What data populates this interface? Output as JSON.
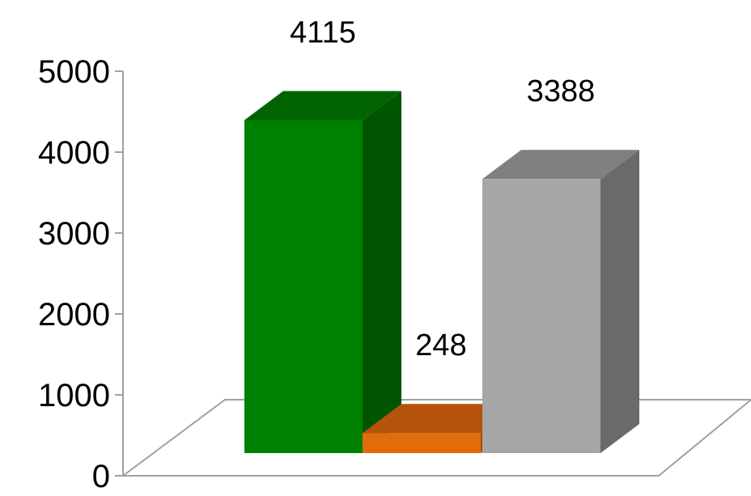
{
  "chart_data": {
    "type": "bar",
    "title": "",
    "xlabel": "",
    "ylabel": "",
    "ylim": [
      0,
      5000
    ],
    "yticks": [
      0,
      1000,
      2000,
      3000,
      4000,
      5000
    ],
    "grid": false,
    "legend": "none",
    "style": "3d-column",
    "categories": [
      "",
      "",
      ""
    ],
    "values": [
      4115,
      248,
      3388
    ],
    "data_labels": [
      "4115",
      "248",
      "3388"
    ],
    "colors": [
      {
        "front": "#008000",
        "side": "#005500",
        "top": "#006400"
      },
      {
        "front": "#e36c0a",
        "side": "#a54c07",
        "top": "#b5530a"
      },
      {
        "front": "#a6a6a6",
        "side": "#6a6a6a",
        "top": "#808080"
      }
    ],
    "axis_color": "#a0a0a0"
  }
}
